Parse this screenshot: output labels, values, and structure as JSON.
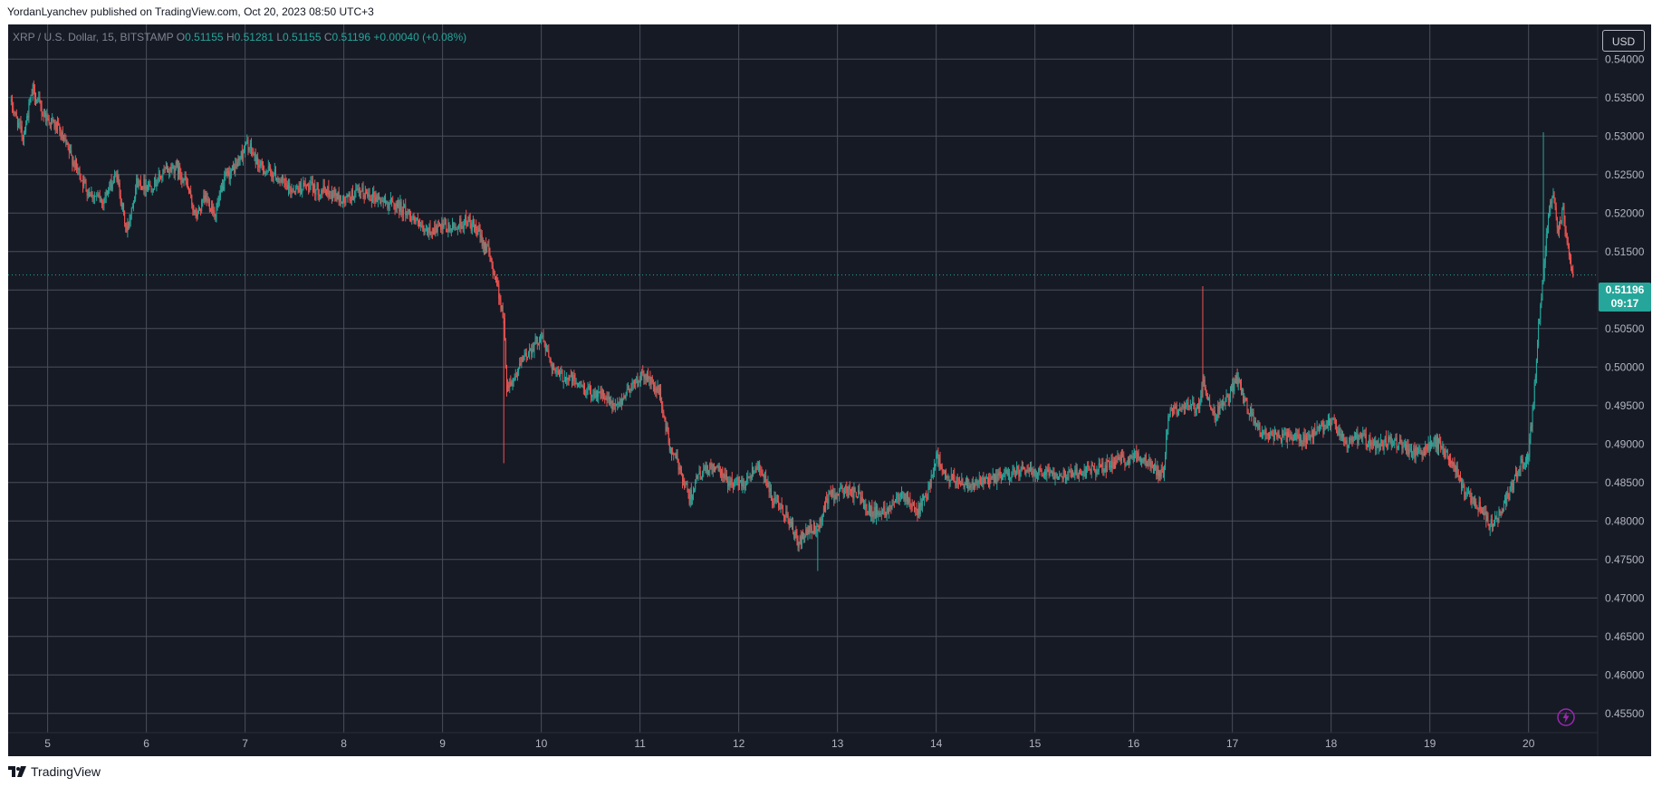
{
  "header": {
    "published_line": "YordanLyanchev published on TradingView.com, Oct 20, 2023 08:50 UTC+3"
  },
  "legend": {
    "symbol": "XRP / U.S. Dollar, 15, BITSTAMP",
    "o_label": "O",
    "o_value": "0.51155",
    "h_label": "H",
    "h_value": "0.51281",
    "l_label": "L",
    "l_value": "0.51155",
    "c_label": "C",
    "c_value": "0.51196",
    "change": "+0.00040 (+0.08%)"
  },
  "currency_button": "USD",
  "last_price": {
    "value": "0.51196",
    "countdown": "09:17"
  },
  "footer": {
    "brand": "TradingView"
  },
  "icons": {
    "bolt": "bolt-icon",
    "logo": "tradingview-logo-icon"
  },
  "colors": {
    "background": "#161a25",
    "up": "#26a69a",
    "down": "#ef5350",
    "grid": "#4a4e5a",
    "text": "#b2b5be"
  },
  "chart_data": {
    "type": "candlestick",
    "title": "XRP / U.S. Dollar, 15, BITSTAMP",
    "xlabel": "",
    "ylabel": "",
    "y_ticks": [
      "0.54000",
      "0.53500",
      "0.53000",
      "0.52500",
      "0.52000",
      "0.51500",
      "0.51000",
      "0.50500",
      "0.50000",
      "0.49500",
      "0.49000",
      "0.48500",
      "0.48000",
      "0.47500",
      "0.47000",
      "0.46500",
      "0.46000",
      "0.45500"
    ],
    "x_ticks": [
      "5",
      "6",
      "7",
      "8",
      "9",
      "10",
      "11",
      "12",
      "13",
      "14",
      "15",
      "16",
      "17",
      "18",
      "19",
      "20"
    ],
    "ylim": [
      0.4525,
      0.5445
    ],
    "xlim": [
      4.6,
      20.7
    ],
    "grid": true,
    "series": [
      {
        "approx_close_path": [
          [
            4.62,
            0.5345
          ],
          [
            4.75,
            0.53
          ],
          [
            4.85,
            0.536
          ],
          [
            4.95,
            0.533
          ],
          [
            5.1,
            0.531
          ],
          [
            5.25,
            0.527
          ],
          [
            5.4,
            0.523
          ],
          [
            5.55,
            0.5215
          ],
          [
            5.7,
            0.525
          ],
          [
            5.8,
            0.5175
          ],
          [
            5.9,
            0.524
          ],
          [
            6.05,
            0.5235
          ],
          [
            6.2,
            0.5255
          ],
          [
            6.3,
            0.526
          ],
          [
            6.4,
            0.524
          ],
          [
            6.5,
            0.5195
          ],
          [
            6.6,
            0.522
          ],
          [
            6.7,
            0.52
          ],
          [
            6.8,
            0.5245
          ],
          [
            6.9,
            0.526
          ],
          [
            7.02,
            0.529
          ],
          [
            7.15,
            0.526
          ],
          [
            7.3,
            0.525
          ],
          [
            7.45,
            0.523
          ],
          [
            7.6,
            0.5235
          ],
          [
            7.75,
            0.523
          ],
          [
            7.9,
            0.5225
          ],
          [
            8.0,
            0.5215
          ],
          [
            8.1,
            0.5225
          ],
          [
            8.25,
            0.5225
          ],
          [
            8.4,
            0.5215
          ],
          [
            8.55,
            0.521
          ],
          [
            8.7,
            0.5195
          ],
          [
            8.8,
            0.5175
          ],
          [
            8.95,
            0.518
          ],
          [
            9.1,
            0.518
          ],
          [
            9.25,
            0.519
          ],
          [
            9.35,
            0.5175
          ],
          [
            9.45,
            0.5155
          ],
          [
            9.55,
            0.511
          ],
          [
            9.62,
            0.506
          ],
          [
            9.65,
            0.4975
          ],
          [
            9.72,
            0.4985
          ],
          [
            9.82,
            0.501
          ],
          [
            9.9,
            0.5025
          ],
          [
            10.0,
            0.504
          ],
          [
            10.15,
            0.499
          ],
          [
            10.3,
            0.4985
          ],
          [
            10.45,
            0.497
          ],
          [
            10.6,
            0.4965
          ],
          [
            10.75,
            0.4945
          ],
          [
            10.9,
            0.4975
          ],
          [
            11.05,
            0.499
          ],
          [
            11.2,
            0.4965
          ],
          [
            11.3,
            0.4895
          ],
          [
            11.4,
            0.487
          ],
          [
            11.5,
            0.483
          ],
          [
            11.6,
            0.486
          ],
          [
            11.75,
            0.487
          ],
          [
            11.9,
            0.485
          ],
          [
            12.05,
            0.485
          ],
          [
            12.2,
            0.4875
          ],
          [
            12.35,
            0.4825
          ],
          [
            12.5,
            0.4805
          ],
          [
            12.6,
            0.477
          ],
          [
            12.7,
            0.4785
          ],
          [
            12.8,
            0.479
          ],
          [
            12.9,
            0.483
          ],
          [
            13.05,
            0.484
          ],
          [
            13.2,
            0.4835
          ],
          [
            13.35,
            0.481
          ],
          [
            13.5,
            0.4815
          ],
          [
            13.65,
            0.484
          ],
          [
            13.8,
            0.481
          ],
          [
            13.9,
            0.483
          ],
          [
            14.0,
            0.4885
          ],
          [
            14.1,
            0.4855
          ],
          [
            14.3,
            0.485
          ],
          [
            14.5,
            0.485
          ],
          [
            14.7,
            0.486
          ],
          [
            14.9,
            0.4865
          ],
          [
            15.1,
            0.4865
          ],
          [
            15.3,
            0.486
          ],
          [
            15.5,
            0.4865
          ],
          [
            15.7,
            0.487
          ],
          [
            15.9,
            0.488
          ],
          [
            16.05,
            0.4885
          ],
          [
            16.2,
            0.487
          ],
          [
            16.3,
            0.486
          ],
          [
            16.35,
            0.494
          ],
          [
            16.5,
            0.495
          ],
          [
            16.65,
            0.4945
          ],
          [
            16.7,
            0.4985
          ],
          [
            16.8,
            0.4935
          ],
          [
            16.95,
            0.496
          ],
          [
            17.05,
            0.4985
          ],
          [
            17.15,
            0.4945
          ],
          [
            17.3,
            0.4915
          ],
          [
            17.45,
            0.491
          ],
          [
            17.6,
            0.491
          ],
          [
            17.75,
            0.4905
          ],
          [
            17.9,
            0.492
          ],
          [
            18.0,
            0.493
          ],
          [
            18.15,
            0.49
          ],
          [
            18.3,
            0.491
          ],
          [
            18.45,
            0.4895
          ],
          [
            18.6,
            0.4905
          ],
          [
            18.75,
            0.4895
          ],
          [
            18.9,
            0.4885
          ],
          [
            19.05,
            0.4905
          ],
          [
            19.15,
            0.489
          ],
          [
            19.25,
            0.487
          ],
          [
            19.35,
            0.4835
          ],
          [
            19.5,
            0.482
          ],
          [
            19.6,
            0.4795
          ],
          [
            19.7,
            0.481
          ],
          [
            19.8,
            0.4835
          ],
          [
            19.9,
            0.4865
          ],
          [
            20.0,
            0.489
          ],
          [
            20.05,
            0.4955
          ],
          [
            20.1,
            0.5055
          ],
          [
            20.15,
            0.512
          ],
          [
            20.2,
            0.52
          ],
          [
            20.25,
            0.522
          ],
          [
            20.3,
            0.5175
          ],
          [
            20.35,
            0.5205
          ],
          [
            20.4,
            0.515
          ],
          [
            20.45,
            0.512
          ]
        ]
      }
    ],
    "last_value": 0.51196
  }
}
